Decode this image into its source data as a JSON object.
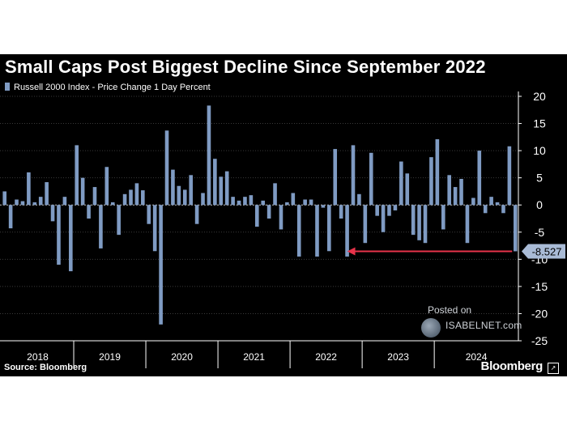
{
  "title": "Small Caps Post Biggest Decline Since September 2022",
  "legend_label": "Russell 2000 Index - Price Change 1 Day Percent",
  "source": "Source: Bloomberg",
  "brand": "Bloomberg",
  "watermark": {
    "line1": "Posted on",
    "line2": "ISABELNET.com"
  },
  "colors": {
    "bar": "#7f9bc3",
    "arrow": "#e8334a",
    "background": "#000000",
    "text": "#ffffff"
  },
  "chart_data": {
    "type": "bar",
    "title": "Small Caps Post Biggest Decline Since September 2022",
    "series": [
      {
        "name": "Russell 2000 Index - Price Change 1 Day Percent",
        "values": [
          2.5,
          -4.3,
          1.0,
          0.7,
          6.0,
          0.5,
          1.5,
          4.2,
          -3.0,
          -11.0,
          1.5,
          -12.2,
          11.0,
          5.0,
          -2.5,
          3.3,
          -8.0,
          7.0,
          0.5,
          -5.5,
          2.0,
          2.8,
          4.0,
          2.7,
          -3.5,
          -8.5,
          -22.0,
          13.7,
          6.5,
          3.5,
          2.8,
          5.5,
          -3.5,
          2.2,
          18.3,
          8.5,
          5.2,
          6.2,
          1.5,
          0.8,
          1.5,
          1.8,
          -4.0,
          0.8,
          -2.5,
          4.0,
          -4.5,
          0.5,
          2.2,
          -9.5,
          1.0,
          1.0,
          -9.5,
          -0.5,
          -8.5,
          10.3,
          -2.5,
          -9.5,
          11.0,
          2.0,
          -7.0,
          9.6,
          -2.0,
          -5.0,
          -2.0,
          -1.0,
          8.0,
          5.8,
          -5.5,
          -6.5,
          -7.0,
          8.8,
          12.1,
          -4.5,
          5.5,
          3.3,
          4.8,
          -7.0,
          1.3,
          10.0,
          -1.5,
          1.5,
          0.5,
          -1.5,
          10.8,
          -8.527
        ]
      }
    ],
    "years": [
      "2018",
      "2019",
      "2020",
      "2021",
      "2022",
      "2023",
      "2024"
    ],
    "year_bar_counts": [
      12,
      12,
      12,
      12,
      12,
      12,
      14
    ],
    "ylim": [
      -25,
      20
    ],
    "yticks": [
      20,
      15,
      10,
      5,
      0,
      -5,
      -10,
      -15,
      -20,
      -25
    ],
    "ytick_labels": [
      "20",
      "15",
      "10",
      "5",
      "0",
      "-5",
      "-10",
      "-15",
      "-20",
      "-25"
    ],
    "last_value_label": "-8.527",
    "arrow_start_index": 57,
    "grid": true,
    "legend_position": "top-left"
  }
}
